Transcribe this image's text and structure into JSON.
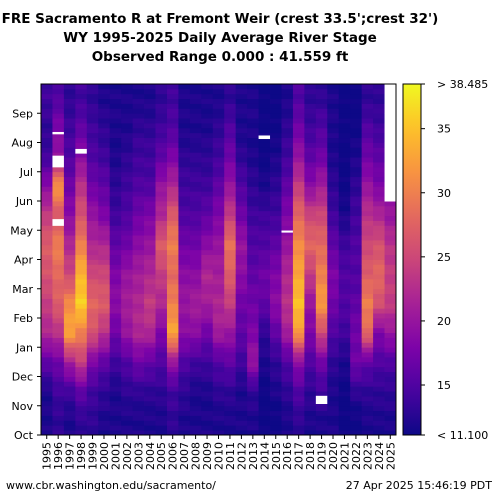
{
  "title_lines": [
    "FRE Sacramento R at Fremont Weir (crest 33.5';crest 32')",
    "WY 1995-2025 Daily Average River Stage",
    "Observed Range 0.000 : 41.559 ft"
  ],
  "footer": {
    "left": "www.cbr.washington.edu/sacramento/",
    "right": "27 Apr 2025 15:46:19 PDT"
  },
  "chart_data": {
    "type": "heatmap",
    "x": [
      1995,
      1996,
      1997,
      1998,
      1999,
      2000,
      2001,
      2002,
      2003,
      2004,
      2005,
      2006,
      2007,
      2008,
      2009,
      2010,
      2011,
      2012,
      2013,
      2014,
      2015,
      2016,
      2017,
      2018,
      2019,
      2020,
      2021,
      2022,
      2023,
      2024,
      2025
    ],
    "x_tick_labels": [
      "1995",
      "1996",
      "1997",
      "1998",
      "1999",
      "2000",
      "2001",
      "2002",
      "2003",
      "2004",
      "2005",
      "2006",
      "2007",
      "2008",
      "2009",
      "2010",
      "2011",
      "2012",
      "2013",
      "2014",
      "2015",
      "2016",
      "2017",
      "2018",
      "2019",
      "2020",
      "2021",
      "2022",
      "2023",
      "2024",
      "2025"
    ],
    "y_tick_labels": [
      "Oct",
      "Nov",
      "Dec",
      "Jan",
      "Feb",
      "Mar",
      "Apr",
      "May",
      "Jun",
      "Jul",
      "Aug",
      "Sep"
    ],
    "y_months": [
      "Oct",
      "Nov",
      "Dec",
      "Jan",
      "Feb",
      "Mar",
      "Apr",
      "May",
      "Jun",
      "Jul",
      "Aug",
      "Sep"
    ],
    "colorbar": {
      "min": 11.1,
      "max": 38.485,
      "min_label": "< 11.100",
      "max_label": "> 38.485",
      "ticks": [
        15,
        20,
        25,
        30,
        35
      ],
      "tick_labels": [
        "15",
        "20",
        "25",
        "30",
        "35"
      ],
      "colormap": "plasma"
    },
    "monthly_stage_ft": [
      [
        12,
        12,
        16,
        22,
        24,
        26,
        27,
        24,
        19,
        14,
        13,
        14
      ],
      [
        13,
        14,
        17,
        23,
        27,
        28,
        30,
        26,
        32,
        20,
        18,
        15
      ],
      [
        12,
        14,
        21,
        33,
        31,
        25,
        22,
        19,
        17,
        15,
        14,
        13
      ],
      [
        13,
        16,
        24,
        30,
        36,
        34,
        30,
        26,
        23,
        19,
        16,
        14
      ],
      [
        13,
        14,
        18,
        26,
        28,
        25,
        22,
        20,
        17,
        15,
        14,
        13
      ],
      [
        12,
        13,
        16,
        23,
        27,
        25,
        22,
        18,
        16,
        14,
        13,
        12
      ],
      [
        12,
        12,
        14,
        17,
        19,
        18,
        16,
        14,
        13,
        12,
        12,
        12
      ],
      [
        12,
        13,
        15,
        20,
        21,
        20,
        17,
        15,
        14,
        13,
        12,
        12
      ],
      [
        12,
        13,
        17,
        22,
        22,
        21,
        19,
        17,
        15,
        14,
        13,
        12
      ],
      [
        12,
        13,
        16,
        22,
        24,
        22,
        20,
        18,
        15,
        14,
        13,
        12
      ],
      [
        12,
        13,
        15,
        18,
        22,
        24,
        27,
        22,
        20,
        16,
        14,
        13
      ],
      [
        13,
        14,
        20,
        33,
        30,
        28,
        30,
        27,
        22,
        18,
        15,
        14
      ],
      [
        12,
        13,
        15,
        19,
        20,
        19,
        17,
        15,
        14,
        13,
        12,
        12
      ],
      [
        12,
        12,
        14,
        19,
        21,
        19,
        17,
        15,
        14,
        13,
        12,
        12
      ],
      [
        12,
        12,
        14,
        17,
        21,
        22,
        19,
        16,
        14,
        13,
        12,
        12
      ],
      [
        12,
        13,
        15,
        21,
        22,
        21,
        20,
        18,
        16,
        14,
        13,
        12
      ],
      [
        12,
        13,
        16,
        20,
        24,
        27,
        29,
        24,
        20,
        17,
        15,
        13
      ],
      [
        12,
        12,
        14,
        16,
        17,
        19,
        20,
        17,
        15,
        13,
        12,
        12
      ],
      [
        12,
        13,
        20,
        18,
        17,
        16,
        15,
        14,
        13,
        12,
        12,
        12
      ],
      [
        11,
        11,
        12,
        13,
        16,
        17,
        15,
        14,
        12,
        11,
        11,
        11
      ],
      [
        11,
        12,
        13,
        16,
        19,
        18,
        16,
        14,
        13,
        12,
        11,
        11
      ],
      [
        12,
        13,
        15,
        21,
        23,
        22,
        20,
        18,
        16,
        14,
        13,
        12
      ],
      [
        13,
        15,
        19,
        32,
        35,
        33,
        31,
        28,
        24,
        20,
        17,
        15
      ],
      [
        12,
        13,
        15,
        18,
        20,
        24,
        28,
        25,
        19,
        16,
        14,
        13
      ],
      [
        12,
        14,
        17,
        25,
        32,
        30,
        28,
        25,
        21,
        17,
        15,
        13
      ],
      [
        12,
        12,
        13,
        15,
        17,
        18,
        16,
        14,
        13,
        12,
        12,
        12
      ],
      [
        11,
        11,
        12,
        14,
        15,
        15,
        14,
        12,
        11,
        11,
        11,
        11
      ],
      [
        11,
        13,
        17,
        17,
        16,
        15,
        15,
        14,
        13,
        12,
        11,
        11
      ],
      [
        12,
        13,
        16,
        28,
        30,
        27,
        25,
        23,
        20,
        17,
        15,
        13
      ],
      [
        12,
        13,
        15,
        18,
        26,
        28,
        26,
        22,
        18,
        16,
        14,
        13
      ],
      [
        12,
        13,
        15,
        20,
        24,
        24,
        23,
        20,
        null,
        null,
        null,
        null
      ]
    ],
    "missing_marks": [
      {
        "year": 1996,
        "month": "Jul",
        "frac_from": 0.15,
        "frac_to": 0.55
      },
      {
        "year": 1996,
        "month": "Aug",
        "frac_from": 0.28,
        "frac_to": 0.36
      },
      {
        "year": 1996,
        "month": "May",
        "frac_from": 0.15,
        "frac_to": 0.38
      },
      {
        "year": 1998,
        "month": "Jul",
        "frac_from": 0.62,
        "frac_to": 0.78
      },
      {
        "year": 2014,
        "month": "Aug",
        "frac_from": 0.12,
        "frac_to": 0.24
      },
      {
        "year": 2019,
        "month": "Nov",
        "frac_from": 0.06,
        "frac_to": 0.34
      },
      {
        "year": 2016,
        "month": "Apr",
        "frac_from": 0.92,
        "frac_to": 0.99
      }
    ]
  }
}
